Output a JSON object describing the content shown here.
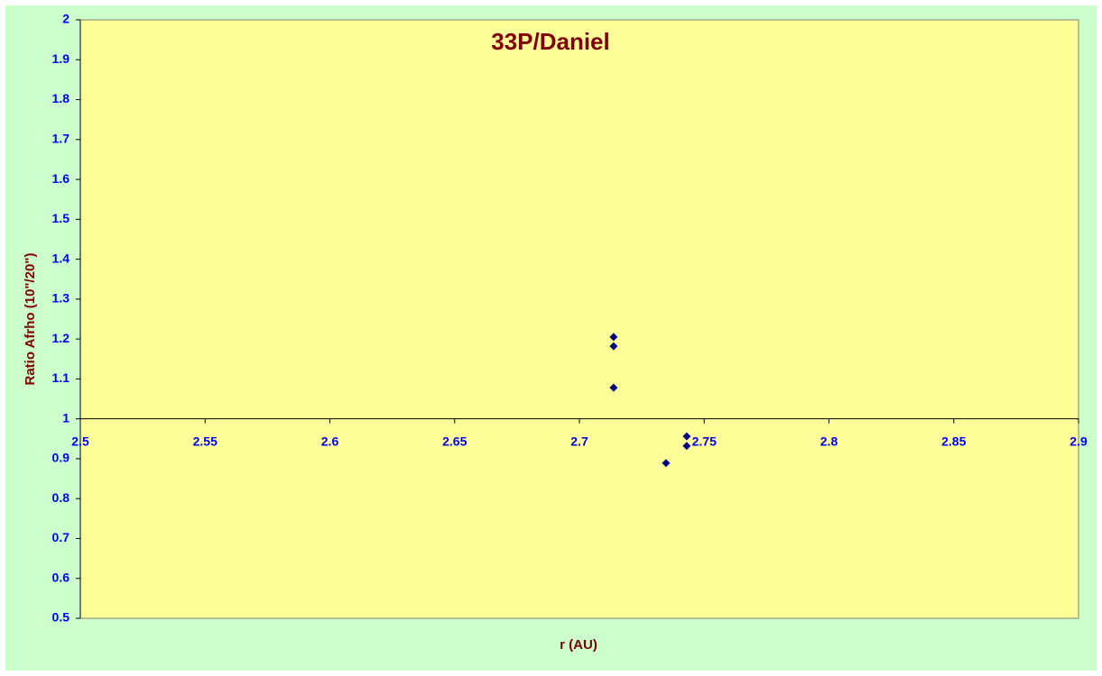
{
  "chart_data": {
    "type": "scatter",
    "title": "33P/Daniel",
    "x_label": "r (AU)",
    "y_label": "Ratio Afrho (10\"/20\")",
    "x": [
      2.7137,
      2.7137,
      2.7137,
      2.7347,
      2.743,
      2.743
    ],
    "values": [
      1.205,
      1.182,
      1.078,
      0.889,
      0.956,
      0.932
    ],
    "color": "#000080",
    "xlim": [
      2.5,
      2.9
    ],
    "xticks": [
      2.5,
      2.55,
      2.6,
      2.65,
      2.7,
      2.75,
      2.8,
      2.85,
      2.9
    ],
    "ylim": [
      0.5,
      2
    ],
    "yticks": [
      0.5,
      0.6,
      0.7,
      0.8,
      0.9,
      1,
      1.1,
      1.2,
      1.3,
      1.4,
      1.5,
      1.6,
      1.7,
      1.8,
      1.9,
      2
    ],
    "x_axis_crosses_at": 1
  }
}
